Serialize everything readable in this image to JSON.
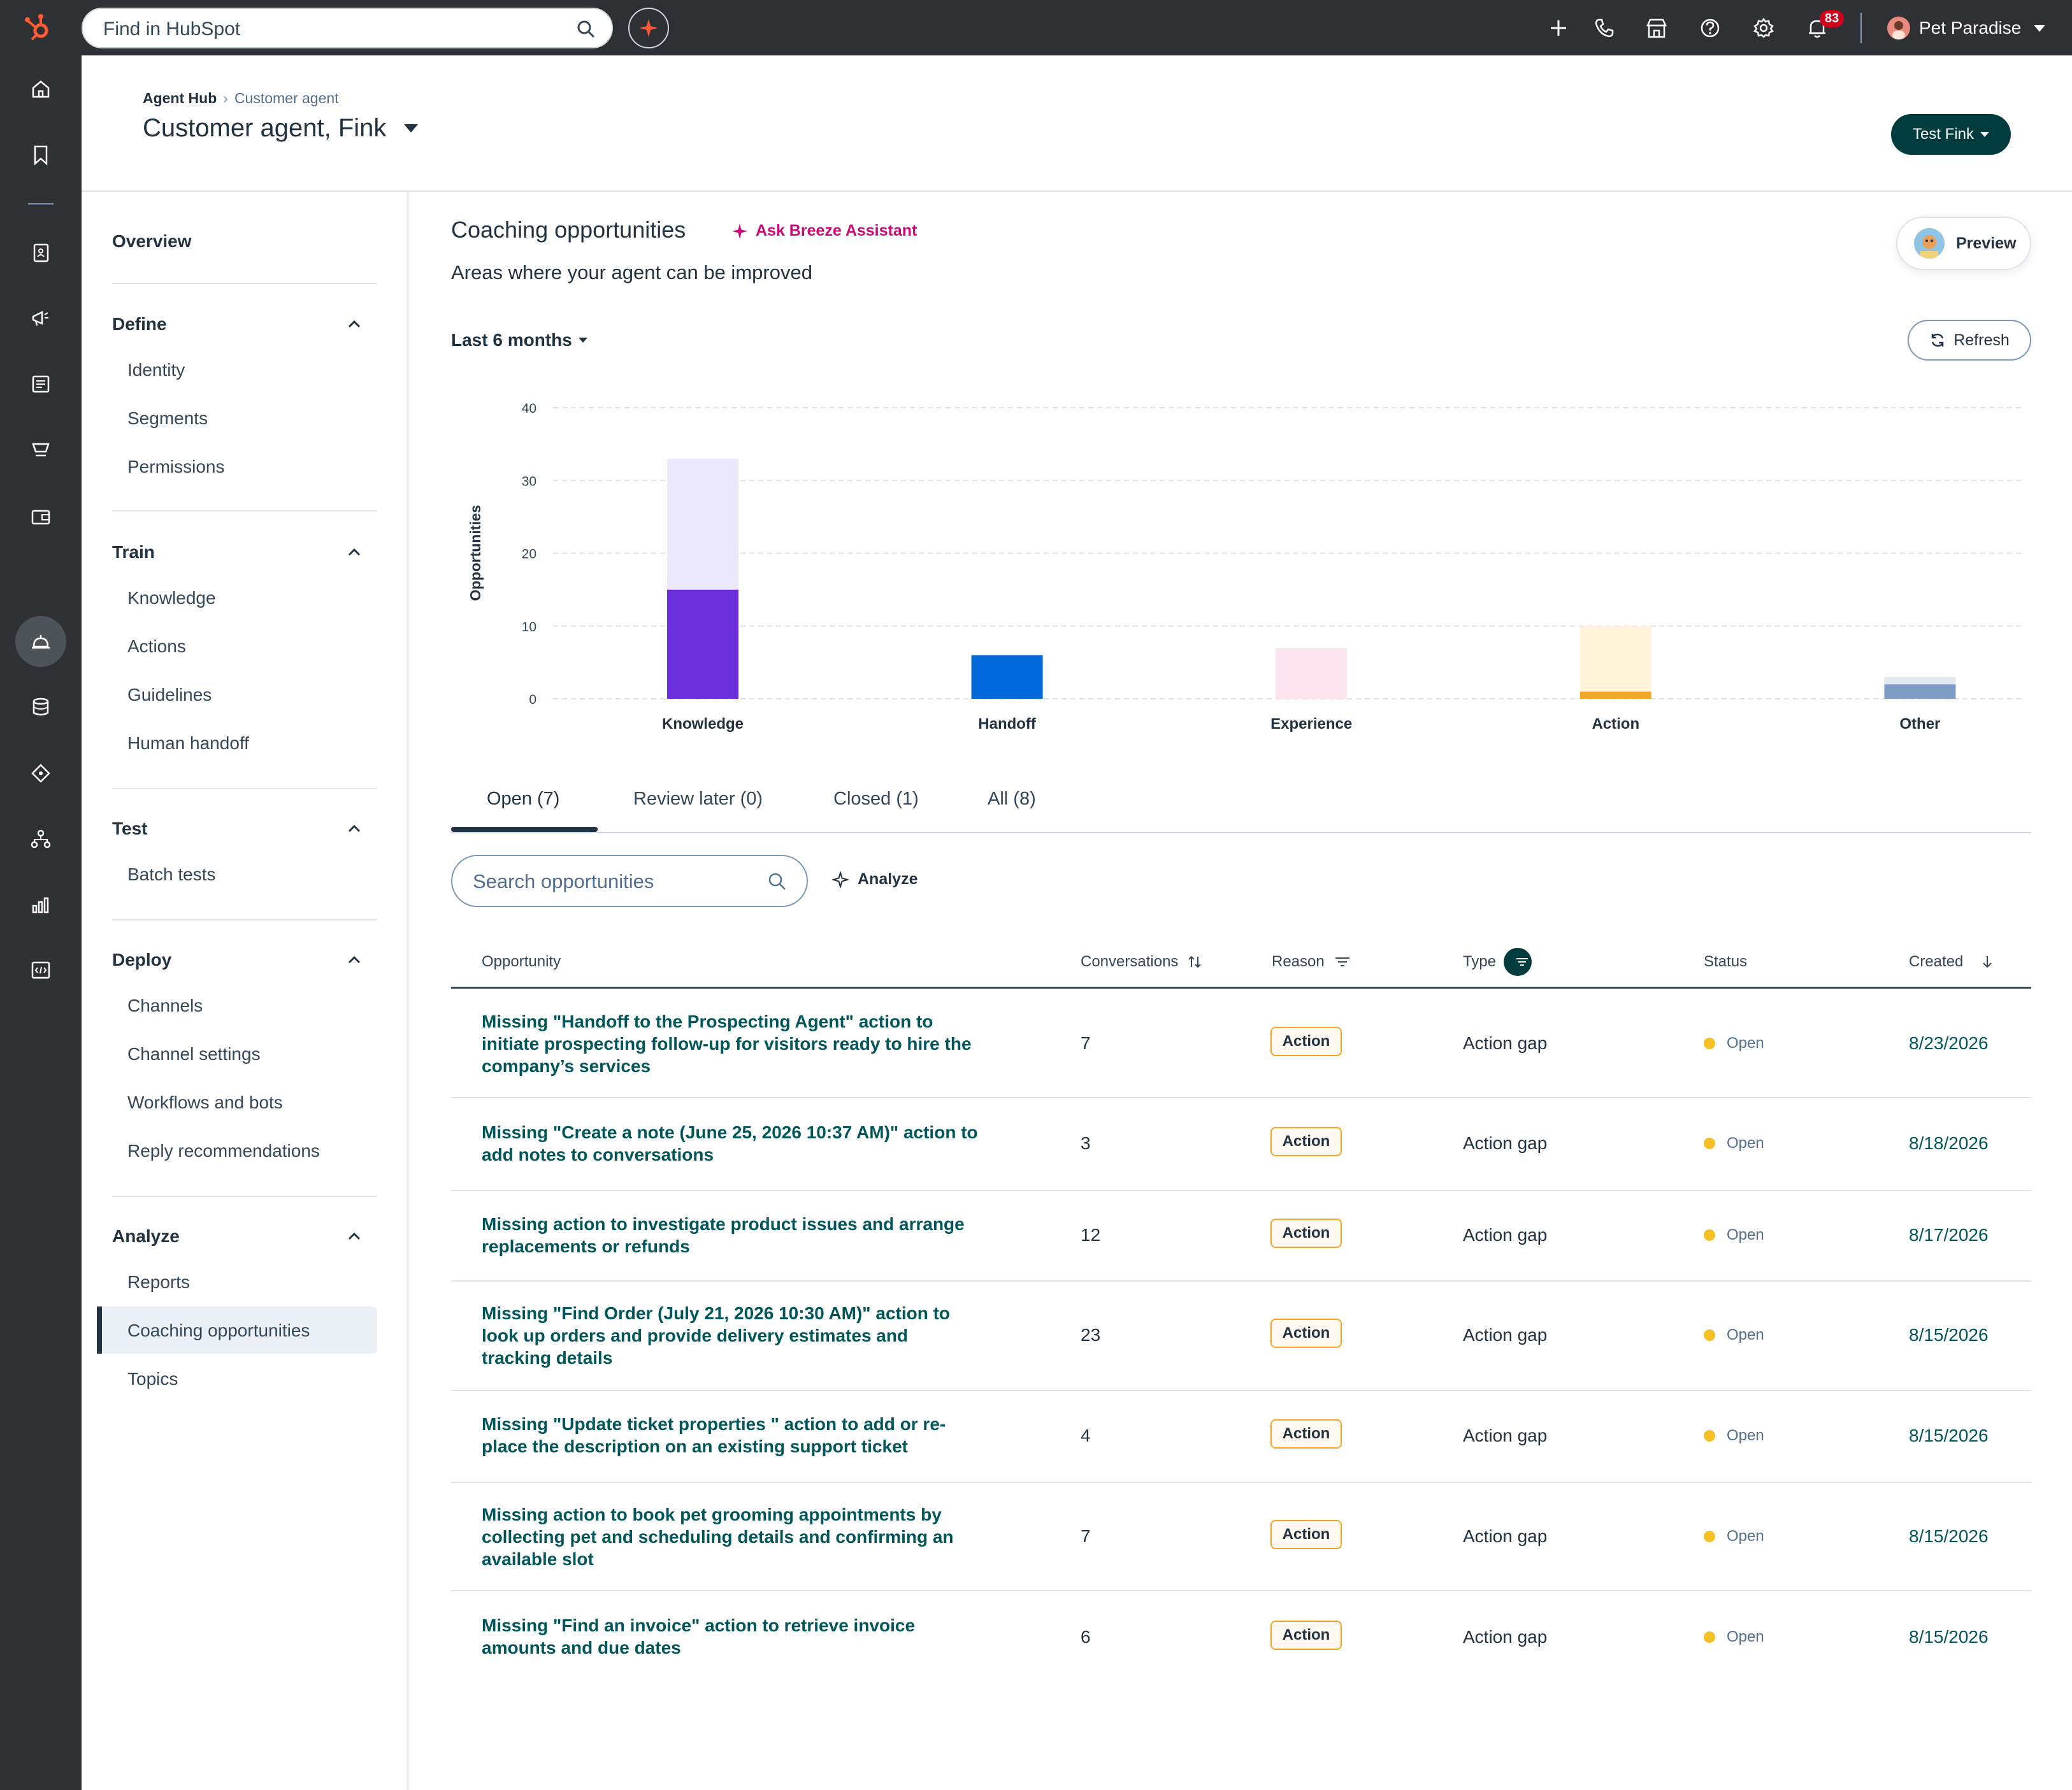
{
  "topbar": {
    "search_placeholder": "Find in HubSpot",
    "notification_count": "83",
    "account_name": "Pet Paradise"
  },
  "header": {
    "breadcrumb_root": "Agent Hub",
    "breadcrumb_current": "Customer agent",
    "title": "Customer agent, Fink",
    "test_button": "Test Fink"
  },
  "sidebar": {
    "overview": "Overview",
    "sections": [
      {
        "label": "Define",
        "items": [
          "Identity",
          "Segments",
          "Permissions"
        ]
      },
      {
        "label": "Train",
        "items": [
          "Knowledge",
          "Actions",
          "Guidelines",
          "Human handoff"
        ]
      },
      {
        "label": "Test",
        "items": [
          "Batch tests"
        ]
      },
      {
        "label": "Deploy",
        "items": [
          "Channels",
          "Channel settings",
          "Workflows and bots",
          "Reply recommendations"
        ]
      },
      {
        "label": "Analyze",
        "items": [
          "Reports",
          "Coaching opportunities",
          "Topics"
        ]
      }
    ],
    "active_item": "Coaching opportunities"
  },
  "main": {
    "title": "Coaching opportunities",
    "ask_breeze": "Ask Breeze Assistant",
    "subtitle": "Areas where your agent can be improved",
    "preview_button": "Preview",
    "range": "Last 6 months",
    "refresh_button": "Refresh"
  },
  "chart_data": {
    "type": "bar",
    "ylabel": "Opportunities",
    "ylim": [
      0,
      40
    ],
    "yticks": [
      0,
      10,
      20,
      30,
      40
    ],
    "grid": true,
    "categories": [
      "Knowledge",
      "Handoff",
      "Experience",
      "Action",
      "Other"
    ],
    "stacks": [
      {
        "category": "Knowledge",
        "segments": [
          {
            "value": 15,
            "color": "#6a2fdb"
          },
          {
            "value": 18,
            "color": "#ece8fb"
          }
        ]
      },
      {
        "category": "Handoff",
        "segments": [
          {
            "value": 6,
            "color": "#0068d9"
          }
        ]
      },
      {
        "category": "Experience",
        "segments": [
          {
            "value": 7,
            "color": "#fbe4ee"
          }
        ]
      },
      {
        "category": "Action",
        "segments": [
          {
            "value": 1,
            "color": "#f2a72a"
          },
          {
            "value": 9,
            "color": "#fff4d9"
          }
        ]
      },
      {
        "category": "Other",
        "segments": [
          {
            "value": 2,
            "color": "#7f9dc4"
          },
          {
            "value": 1,
            "color": "#e4e9f1"
          }
        ]
      }
    ]
  },
  "tabs": [
    {
      "label": "Open (7)",
      "active": true
    },
    {
      "label": "Review later (0)",
      "active": false
    },
    {
      "label": "Closed (1)",
      "active": false
    },
    {
      "label": "All (8)",
      "active": false
    }
  ],
  "search": {
    "placeholder": "Search opportunities"
  },
  "analyze_button": "Analyze",
  "table": {
    "columns": [
      "Opportunity",
      "Conversations",
      "Reason",
      "Type",
      "Status",
      "Created"
    ],
    "rows": [
      {
        "opportunity": "Missing \"Handoff to the Prospecting Agent\" action to initiate prospecting follow-up for visitors ready to hire the company’s services",
        "conversations": "7",
        "reason": "Action",
        "type": "Action gap",
        "status": "Open",
        "created": "8/23/2026"
      },
      {
        "opportunity": "Missing \"Create a note (June 25, 2026 10:37 AM)\" action to add notes to conversations",
        "conversations": "3",
        "reason": "Action",
        "type": "Action gap",
        "status": "Open",
        "created": "8/18/2026"
      },
      {
        "opportunity": "Missing action to investigate product issues and arrange replacements or refunds",
        "conversations": "12",
        "reason": "Action",
        "type": "Action gap",
        "status": "Open",
        "created": "8/17/2026"
      },
      {
        "opportunity": "Missing \"Find Order (July 21, 2026 10:30 AM)\" action to look up orders and provide delivery estimates and tracking details",
        "conversations": "23",
        "reason": "Action",
        "type": "Action gap",
        "status": "Open",
        "created": "8/15/2026"
      },
      {
        "opportunity": "Missing \"Update ticket properties \" action to add or re-place the description on an existing support ticket",
        "conversations": "4",
        "reason": "Action",
        "type": "Action gap",
        "status": "Open",
        "created": "8/15/2026"
      },
      {
        "opportunity": "Missing action to book pet grooming appointments by collecting pet and scheduling details and confirming an available slot",
        "conversations": "7",
        "reason": "Action",
        "type": "Action gap",
        "status": "Open",
        "created": "8/15/2026"
      },
      {
        "opportunity": "Missing \"Find an invoice\" action to retrieve invoice amounts and due dates",
        "conversations": "6",
        "reason": "Action",
        "type": "Action gap",
        "status": "Open",
        "created": "8/15/2026"
      }
    ]
  }
}
